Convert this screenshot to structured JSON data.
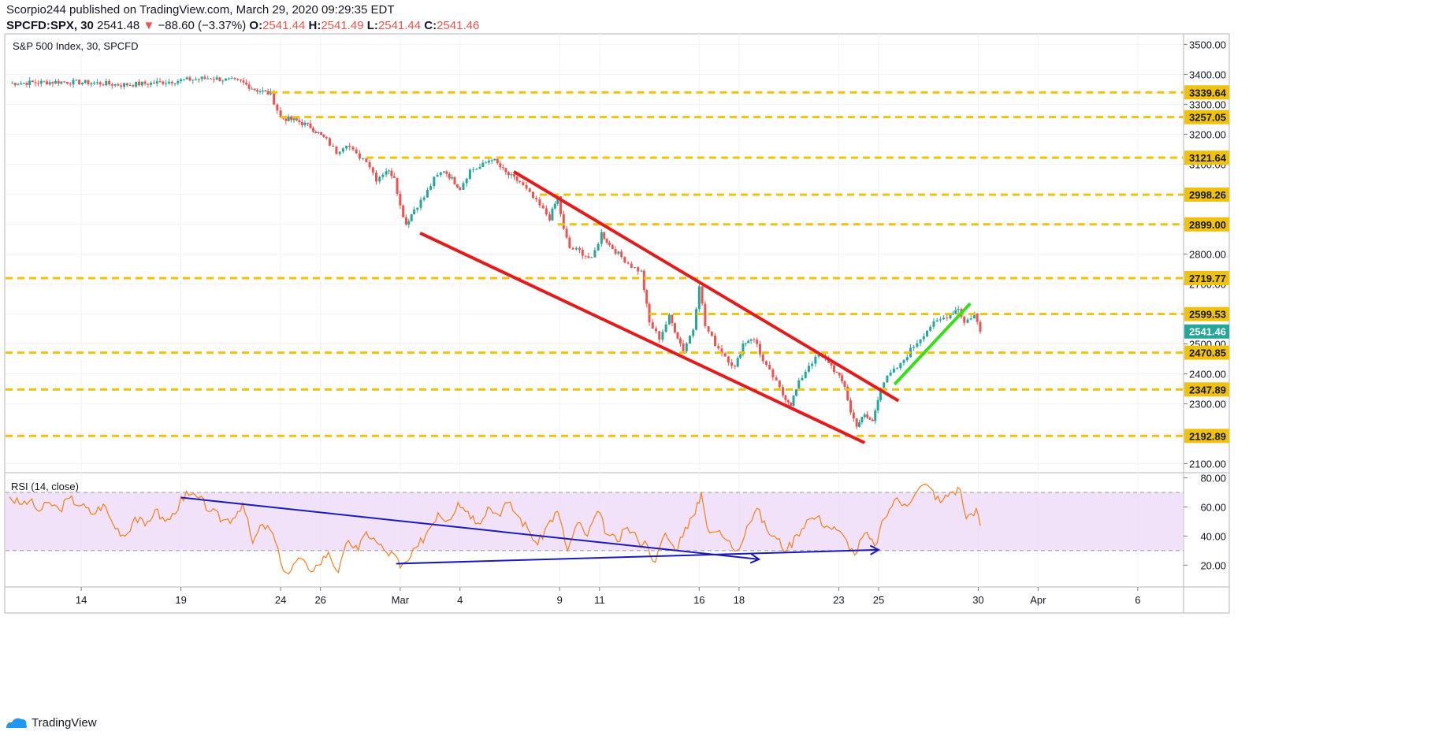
{
  "header": {
    "line1": "Scorpio244 published on TradingView.com, March 29, 2020 09:29:35 EDT",
    "symbol": "SPCFD:SPX, 30",
    "price": "2541.48",
    "change": "−88.60 (−3.37%)",
    "o_label": "O:",
    "o_value": "2541.44",
    "h_label": "H:",
    "h_value": "2541.49",
    "l_label": "L:",
    "l_value": "2541.44",
    "c_label": "C:",
    "c_value": "2541.46"
  },
  "footer": {
    "brand": "TradingView"
  },
  "colors": {
    "up": "#26a69a",
    "down": "#ef5350",
    "level": "#f0c20e",
    "channel": "#e31b1b",
    "trend_green": "#35e01a",
    "rsi_line": "#f57f17",
    "rsi_band": "#ead2f7",
    "divergence": "#1a1ab8",
    "last_price_bg": "#26a69a"
  },
  "chart_data": [
    {
      "type": "candlestick",
      "title": "S&P 500 Index, 30, SPCFD",
      "y_ticks": [
        2100,
        2200,
        2300,
        2400,
        2500,
        2600,
        2700,
        2800,
        2900,
        3000,
        3100,
        3200,
        3300,
        3400,
        3500
      ],
      "y_tick_labels": [
        "2100.00",
        "2200.00",
        "2300.00",
        "2400.00",
        "2500.00",
        "2600.00",
        "2700.00",
        "2800.00",
        "2900.00",
        "3000.00",
        "3100.00",
        "3200.00",
        "3300.00",
        "3400.00",
        "3500.00"
      ],
      "ylim": [
        2070,
        3535
      ],
      "x_axis_labels": [
        "14",
        "19",
        "24",
        "26",
        "Mar",
        "4",
        "9",
        "11",
        "16",
        "18",
        "23",
        "25",
        "30",
        "Apr",
        "6"
      ],
      "x_axis_days": [
        0,
        5,
        10,
        12,
        16,
        19,
        24,
        26,
        31,
        33,
        38,
        40,
        45,
        48,
        53
      ],
      "xlim_days": [
        -3.8,
        55.3
      ],
      "close_path": [
        [
          -3.6,
          3370
        ],
        [
          -1.0,
          3375
        ],
        [
          0.5,
          3372
        ],
        [
          2.0,
          3365
        ],
        [
          3.5,
          3370
        ],
        [
          5.0,
          3380
        ],
        [
          6.5,
          3388
        ],
        [
          8.0,
          3375
        ],
        [
          8.7,
          3350
        ],
        [
          9.5,
          3335
        ],
        [
          10.0,
          3255
        ],
        [
          10.8,
          3245
        ],
        [
          11.5,
          3225
        ],
        [
          12.3,
          3180
        ],
        [
          12.8,
          3140
        ],
        [
          13.3,
          3170
        ],
        [
          13.8,
          3130
        ],
        [
          14.3,
          3115
        ],
        [
          14.8,
          3050
        ],
        [
          15.3,
          3080
        ],
        [
          15.7,
          3060
        ],
        [
          16.0,
          2960
        ],
        [
          16.3,
          2900
        ],
        [
          16.7,
          2950
        ],
        [
          17.2,
          2990
        ],
        [
          17.7,
          3050
        ],
        [
          18.2,
          3080
        ],
        [
          18.6,
          3050
        ],
        [
          19.0,
          3020
        ],
        [
          19.5,
          3080
        ],
        [
          20.0,
          3090
        ],
        [
          20.6,
          3120
        ],
        [
          21.3,
          3070
        ],
        [
          22.0,
          3040
        ],
        [
          22.5,
          3000
        ],
        [
          23.0,
          2960
        ],
        [
          23.5,
          2920
        ],
        [
          23.9,
          2990
        ],
        [
          24.2,
          2880
        ],
        [
          24.5,
          2820
        ],
        [
          25.0,
          2810
        ],
        [
          25.6,
          2780
        ],
        [
          26.1,
          2870
        ],
        [
          26.5,
          2830
        ],
        [
          27.1,
          2790
        ],
        [
          27.6,
          2760
        ],
        [
          28.1,
          2740
        ],
        [
          28.5,
          2570
        ],
        [
          29.0,
          2520
        ],
        [
          29.5,
          2590
        ],
        [
          30.2,
          2480
        ],
        [
          30.7,
          2550
        ],
        [
          31.0,
          2700
        ],
        [
          31.3,
          2560
        ],
        [
          31.8,
          2500
        ],
        [
          32.3,
          2460
        ],
        [
          32.8,
          2420
        ],
        [
          33.2,
          2500
        ],
        [
          33.6,
          2520
        ],
        [
          33.9,
          2500
        ],
        [
          34.2,
          2440
        ],
        [
          34.7,
          2390
        ],
        [
          35.2,
          2330
        ],
        [
          35.6,
          2300
        ],
        [
          36.0,
          2370
        ],
        [
          36.5,
          2430
        ],
        [
          37.0,
          2460
        ],
        [
          37.5,
          2440
        ],
        [
          37.9,
          2400
        ],
        [
          38.3,
          2360
        ],
        [
          38.6,
          2270
        ],
        [
          38.9,
          2230
        ],
        [
          39.3,
          2260
        ],
        [
          39.7,
          2240
        ],
        [
          40.1,
          2360
        ],
        [
          40.6,
          2400
        ],
        [
          41.1,
          2430
        ],
        [
          41.6,
          2480
        ],
        [
          42.1,
          2520
        ],
        [
          42.6,
          2560
        ],
        [
          43.1,
          2580
        ],
        [
          43.6,
          2600
        ],
        [
          44.0,
          2620
        ],
        [
          44.3,
          2570
        ],
        [
          44.8,
          2600
        ],
        [
          45.1,
          2541
        ]
      ]
    },
    {
      "type": "line",
      "title": "RSI (14, close)",
      "y_ticks": [
        20,
        40,
        60,
        80
      ],
      "y_tick_labels": [
        "20.00",
        "40.00",
        "60.00",
        "80.00"
      ],
      "ylim": [
        5,
        83
      ],
      "band": [
        30,
        70
      ],
      "series": [
        {
          "values": [
            [
              -3.6,
              67
            ],
            [
              -3.1,
              62
            ],
            [
              -2.6,
              64
            ],
            [
              -2.1,
              57
            ],
            [
              -1.6,
              63
            ],
            [
              -1.1,
              58
            ],
            [
              -0.6,
              66
            ],
            [
              0.0,
              61
            ],
            [
              0.6,
              55
            ],
            [
              1.1,
              62
            ],
            [
              1.6,
              48
            ],
            [
              2.2,
              40
            ],
            [
              2.7,
              53
            ],
            [
              3.2,
              47
            ],
            [
              3.7,
              58
            ],
            [
              4.2,
              50
            ],
            [
              4.7,
              55
            ],
            [
              5.0,
              67
            ],
            [
              5.4,
              68
            ],
            [
              5.9,
              66
            ],
            [
              6.5,
              57
            ],
            [
              7.1,
              51
            ],
            [
              7.6,
              52
            ],
            [
              8.1,
              63
            ],
            [
              8.6,
              35
            ],
            [
              9.1,
              48
            ],
            [
              9.6,
              42
            ],
            [
              10.0,
              22
            ],
            [
              10.4,
              14
            ],
            [
              10.9,
              25
            ],
            [
              11.4,
              17
            ],
            [
              11.9,
              20
            ],
            [
              12.4,
              29
            ],
            [
              12.9,
              15
            ],
            [
              13.4,
              37
            ],
            [
              13.9,
              30
            ],
            [
              14.3,
              43
            ],
            [
              14.8,
              36
            ],
            [
              15.3,
              29
            ],
            [
              15.8,
              26
            ],
            [
              16.0,
              18
            ],
            [
              16.4,
              23
            ],
            [
              16.9,
              33
            ],
            [
              17.4,
              44
            ],
            [
              17.9,
              56
            ],
            [
              18.4,
              51
            ],
            [
              18.9,
              63
            ],
            [
              19.4,
              57
            ],
            [
              19.9,
              49
            ],
            [
              20.4,
              60
            ],
            [
              20.9,
              55
            ],
            [
              21.4,
              63
            ],
            [
              21.9,
              54
            ],
            [
              22.4,
              45
            ],
            [
              22.9,
              34
            ],
            [
              23.4,
              48
            ],
            [
              23.9,
              57
            ],
            [
              24.4,
              30
            ],
            [
              24.9,
              49
            ],
            [
              25.4,
              40
            ],
            [
              25.9,
              57
            ],
            [
              26.4,
              41
            ],
            [
              26.9,
              36
            ],
            [
              27.4,
              46
            ],
            [
              27.9,
              38
            ],
            [
              28.4,
              34
            ],
            [
              28.8,
              22
            ],
            [
              29.3,
              42
            ],
            [
              29.8,
              30
            ],
            [
              30.3,
              46
            ],
            [
              30.8,
              55
            ],
            [
              31.1,
              70
            ],
            [
              31.4,
              46
            ],
            [
              31.9,
              43
            ],
            [
              32.4,
              37
            ],
            [
              32.9,
              30
            ],
            [
              33.4,
              47
            ],
            [
              33.9,
              59
            ],
            [
              34.4,
              44
            ],
            [
              34.9,
              38
            ],
            [
              35.4,
              30
            ],
            [
              35.9,
              41
            ],
            [
              36.4,
              51
            ],
            [
              36.9,
              53
            ],
            [
              37.4,
              47
            ],
            [
              37.9,
              44
            ],
            [
              38.4,
              37
            ],
            [
              38.8,
              27
            ],
            [
              39.3,
              42
            ],
            [
              39.8,
              33
            ],
            [
              40.3,
              52
            ],
            [
              40.8,
              65
            ],
            [
              41.3,
              62
            ],
            [
              41.8,
              68
            ],
            [
              42.2,
              75
            ],
            [
              42.6,
              73
            ],
            [
              43.1,
              63
            ],
            [
              43.6,
              70
            ],
            [
              44.1,
              72
            ],
            [
              44.4,
              52
            ],
            [
              44.9,
              59
            ],
            [
              45.1,
              47
            ]
          ]
        }
      ]
    }
  ],
  "levels": [
    "3339.64",
    "3257.05",
    "3121.64",
    "2998.26",
    "2899.00",
    "2719.77",
    "2599.53",
    "2470.85",
    "2347.89",
    "2192.89"
  ],
  "last_price_label": "2541.46"
}
